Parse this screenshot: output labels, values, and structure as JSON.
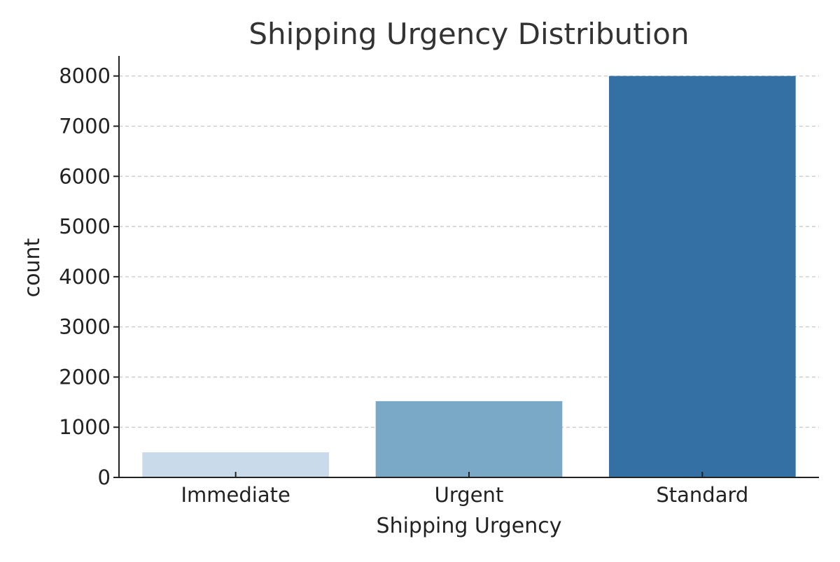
{
  "chart_data": {
    "type": "bar",
    "title": "Shipping Urgency Distribution",
    "xlabel": "Shipping Urgency",
    "ylabel": "count",
    "categories": [
      "Immediate",
      "Urgent",
      "Standard"
    ],
    "values": [
      500,
      1520,
      8000
    ],
    "ylim": [
      0,
      8400
    ],
    "yticks": [
      0,
      1000,
      2000,
      3000,
      4000,
      5000,
      6000,
      7000,
      8000
    ],
    "grid": "y-dashed",
    "colors": [
      "#c9dbea",
      "#79a9c7",
      "#3470a3"
    ],
    "legend": "none"
  }
}
